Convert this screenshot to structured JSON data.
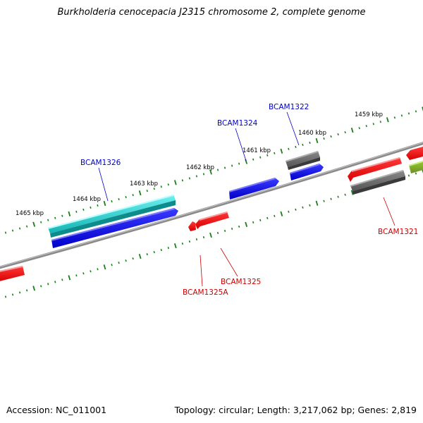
{
  "title": "Burkholderia cenocepacia J2315 chromosome 2, complete genome",
  "footer": {
    "accession": "Accession: NC_011001",
    "summary": "Topology: circular; Length: 3,217,062 bp; Genes: 2,819"
  },
  "colors": {
    "forward_strand_labels": "#0000cc",
    "reverse_strand_labels": "#cc0000",
    "backbone": "#8a8a8a",
    "ticks": "#1a7f1a"
  },
  "scale_labels": [
    "1459 kbp",
    "1460 kbp",
    "1461 kbp",
    "1462 kbp",
    "1463 kbp",
    "1464 kbp",
    "1465 kbp"
  ],
  "gene_labels": [
    {
      "name": "BCAM1322",
      "strand": "forward"
    },
    {
      "name": "BCAM1324",
      "strand": "forward"
    },
    {
      "name": "BCAM1326",
      "strand": "forward"
    },
    {
      "name": "BCAM1321",
      "strand": "reverse"
    },
    {
      "name": "BCAM1325",
      "strand": "reverse"
    },
    {
      "name": "BCAM1325A",
      "strand": "reverse"
    }
  ]
}
